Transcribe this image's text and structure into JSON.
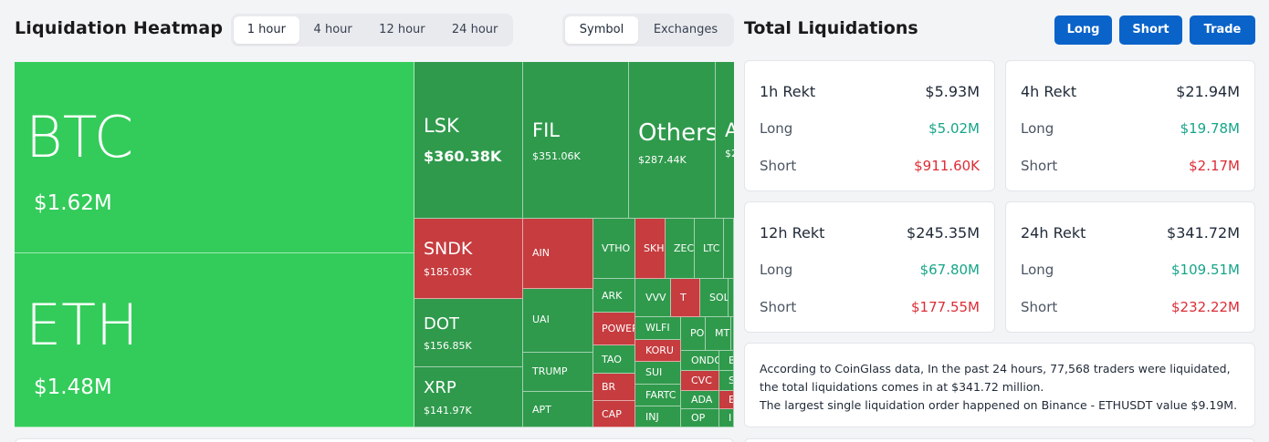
{
  "heatmap": {
    "title": "Liquidation Heatmap",
    "time_tabs": [
      {
        "label": "1 hour",
        "active": true
      },
      {
        "label": "4 hour",
        "active": false
      },
      {
        "label": "12 hour",
        "active": false
      },
      {
        "label": "24 hour",
        "active": false
      }
    ],
    "view_tabs": [
      {
        "label": "Symbol",
        "active": true
      },
      {
        "label": "Exchanges",
        "active": false
      }
    ],
    "colors": {
      "bright_green": "#33cc5a",
      "green": "#2f9a4c",
      "red": "#c63c3f"
    },
    "tiles": [
      {
        "symbol": "BTC",
        "value": "$1.62M"
      },
      {
        "symbol": "ETH",
        "value": "$1.48M"
      },
      {
        "symbol": "LSK",
        "value": "$360.38K"
      },
      {
        "symbol": "FIL",
        "value": "$351.06K"
      },
      {
        "symbol": "Others",
        "value": "$287.44K"
      },
      {
        "symbol": "A",
        "value": "$2"
      },
      {
        "symbol": "SNDK",
        "value": "$185.03K"
      },
      {
        "symbol": "DOT",
        "value": "$156.85K"
      },
      {
        "symbol": "XRP",
        "value": "$141.97K"
      },
      {
        "symbol": "AIN",
        "value": ""
      },
      {
        "symbol": "UAI",
        "value": ""
      },
      {
        "symbol": "TRUMP",
        "value": ""
      },
      {
        "symbol": "APT",
        "value": ""
      },
      {
        "symbol": "VTHO",
        "value": ""
      },
      {
        "symbol": "SKH",
        "value": ""
      },
      {
        "symbol": "ZEC",
        "value": ""
      },
      {
        "symbol": "LTC",
        "value": ""
      },
      {
        "symbol": "ARK",
        "value": ""
      },
      {
        "symbol": "VVV",
        "value": ""
      },
      {
        "symbol": "T",
        "value": ""
      },
      {
        "symbol": "SOL",
        "value": ""
      },
      {
        "symbol": "POWER",
        "value": ""
      },
      {
        "symbol": "WLFI",
        "value": ""
      },
      {
        "symbol": "PO",
        "value": ""
      },
      {
        "symbol": "MT",
        "value": ""
      },
      {
        "symbol": "TAO",
        "value": ""
      },
      {
        "symbol": "KORU",
        "value": ""
      },
      {
        "symbol": "ONDO",
        "value": ""
      },
      {
        "symbol": "B",
        "value": ""
      },
      {
        "symbol": "BR",
        "value": ""
      },
      {
        "symbol": "SUI",
        "value": ""
      },
      {
        "symbol": "CVC",
        "value": ""
      },
      {
        "symbol": "S",
        "value": ""
      },
      {
        "symbol": "FARTC",
        "value": ""
      },
      {
        "symbol": "ADA",
        "value": ""
      },
      {
        "symbol": "E",
        "value": ""
      },
      {
        "symbol": "CAP",
        "value": ""
      },
      {
        "symbol": "INJ",
        "value": ""
      },
      {
        "symbol": "OP",
        "value": ""
      },
      {
        "symbol": "I",
        "value": ""
      }
    ]
  },
  "total": {
    "title": "Total Liquidations",
    "buttons": {
      "long": "Long",
      "short": "Short",
      "trade": "Trade"
    },
    "long_label": "Long",
    "short_label": "Short",
    "cards": [
      {
        "period": "1h Rekt",
        "total": "$5.93M",
        "long": "$5.02M",
        "short": "$911.60K"
      },
      {
        "period": "4h Rekt",
        "total": "$21.94M",
        "long": "$19.78M",
        "short": "$2.17M"
      },
      {
        "period": "12h Rekt",
        "total": "$245.35M",
        "long": "$67.80M",
        "short": "$177.55M"
      },
      {
        "period": "24h Rekt",
        "total": "$341.72M",
        "long": "$109.51M",
        "short": "$232.22M"
      }
    ],
    "summary_line1": "According to CoinGlass data, In the past 24 hours, 77,568 traders were liquidated, the total liquidations comes in at $341.72 million.",
    "summary_line2": "The largest single liquidation order happened on Binance - ETHUSDT value $9.19M."
  }
}
